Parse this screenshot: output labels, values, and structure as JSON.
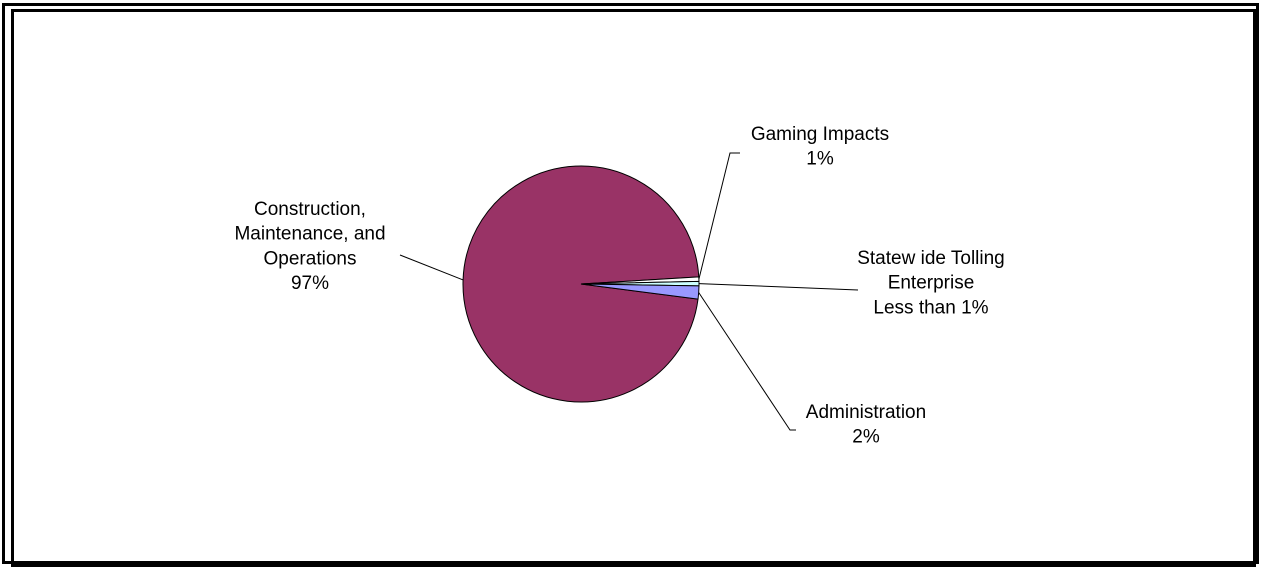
{
  "chart_data": {
    "type": "pie",
    "title": "",
    "slices": [
      {
        "label": [
          "Construction,",
          "Maintenance, and",
          "Operations",
          "97%"
        ],
        "value": 97,
        "color": "#993366"
      },
      {
        "label": [
          "Gaming Impacts",
          "1%"
        ],
        "value": 0.6,
        "color": "#ffffff"
      },
      {
        "label": [
          "Statew ide Tolling",
          "Enterprise",
          "Less than 1%"
        ],
        "value": 0.6,
        "color": "#ccffff"
      },
      {
        "label": [
          "Administration",
          "2%"
        ],
        "value": 1.8,
        "color": "#9999ff"
      }
    ],
    "legend": "none"
  }
}
